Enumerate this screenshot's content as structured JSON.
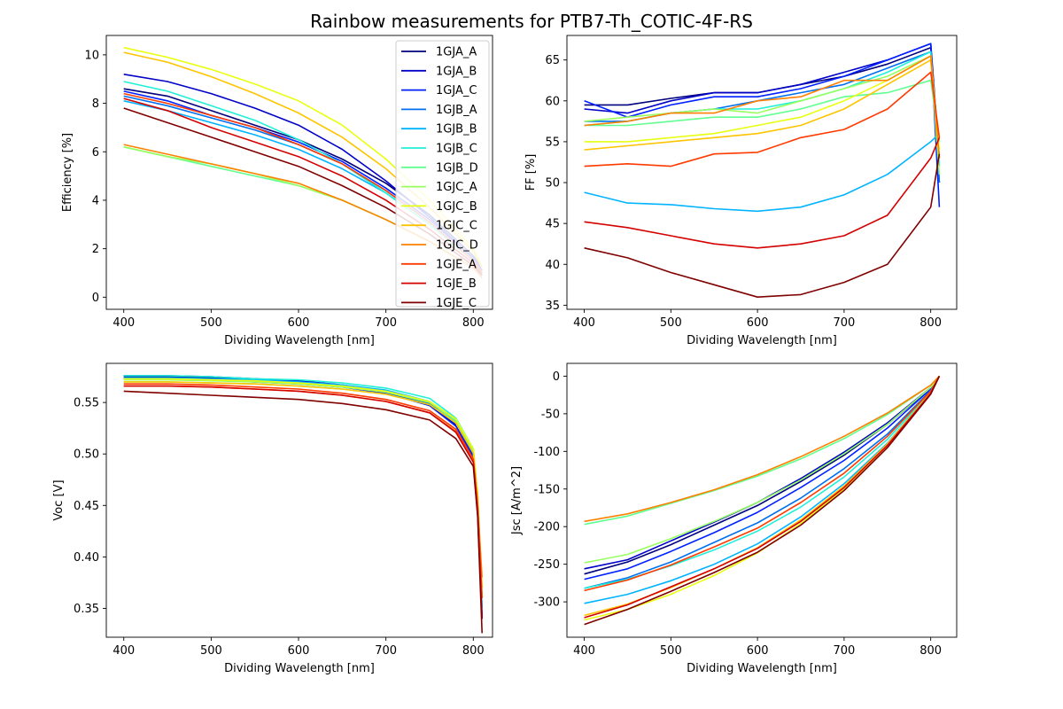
{
  "figure": {
    "title": "Rainbow measurements for PTB7-Th_COTIC-4F-RS"
  },
  "legend": {
    "location": "upper right of top-left panel",
    "entries": [
      "1GJA_A",
      "1GJA_B",
      "1GJA_C",
      "1GJB_A",
      "1GJB_B",
      "1GJB_C",
      "1GJB_D",
      "1GJC_A",
      "1GJC_B",
      "1GJC_C",
      "1GJC_D",
      "1GJE_A",
      "1GJE_B",
      "1GJE_C"
    ]
  },
  "series_colors": {
    "1GJA_A": "#00007f",
    "1GJA_B": "#0000c8",
    "1GJA_C": "#0020ff",
    "1GJB_A": "#0070f0",
    "1GJB_B": "#00b4ff",
    "1GJB_C": "#20f0d8",
    "1GJB_D": "#60ff90",
    "1GJC_A": "#98ff60",
    "1GJC_B": "#e8ff10",
    "1GJC_C": "#ffc400",
    "1GJC_D": "#ff8000",
    "1GJE_A": "#ff3a00",
    "1GJE_B": "#d40000",
    "1GJE_C": "#800000"
  },
  "chart_data": [
    {
      "id": "efficiency",
      "type": "line",
      "xlabel": "Dividing Wavelength [nm]",
      "ylabel": "Efficiency [%]",
      "xlim": [
        380,
        822
      ],
      "ylim": [
        -0.5,
        10.8
      ],
      "xticks": [
        400,
        500,
        600,
        700,
        800
      ],
      "yticks": [
        0,
        2,
        4,
        6,
        8,
        10
      ],
      "x": [
        400,
        450,
        500,
        550,
        600,
        650,
        700,
        750,
        800,
        810
      ],
      "series": [
        {
          "name": "1GJA_A",
          "values": [
            8.6,
            8.3,
            7.7,
            7.1,
            6.5,
            5.7,
            4.7,
            3.4,
            1.7,
            1.2
          ]
        },
        {
          "name": "1GJA_B",
          "values": [
            9.2,
            8.9,
            8.4,
            7.8,
            7.1,
            6.1,
            4.8,
            3.3,
            1.6,
            1.1
          ]
        },
        {
          "name": "1GJA_C",
          "values": [
            8.5,
            8.1,
            7.5,
            7.0,
            6.4,
            5.6,
            4.5,
            3.2,
            1.6,
            1.1
          ]
        },
        {
          "name": "1GJB_A",
          "values": [
            8.3,
            7.9,
            7.4,
            6.9,
            6.3,
            5.5,
            4.4,
            3.1,
            1.5,
            1.0
          ]
        },
        {
          "name": "1GJB_B",
          "values": [
            8.1,
            7.7,
            7.2,
            6.7,
            6.1,
            5.3,
            4.3,
            3.0,
            1.5,
            1.0
          ]
        },
        {
          "name": "1GJB_C",
          "values": [
            8.9,
            8.5,
            7.9,
            7.3,
            6.5,
            5.5,
            4.3,
            3.0,
            1.5,
            1.0
          ]
        },
        {
          "name": "1GJB_D",
          "values": [
            6.2,
            5.8,
            5.4,
            5.0,
            4.6,
            4.0,
            3.2,
            2.3,
            1.2,
            0.8
          ]
        },
        {
          "name": "1GJC_A",
          "values": [
            6.2,
            5.8,
            5.5,
            5.1,
            4.6,
            4.0,
            3.2,
            2.3,
            1.2,
            0.8
          ]
        },
        {
          "name": "1GJC_B",
          "values": [
            10.3,
            9.9,
            9.4,
            8.8,
            8.1,
            7.1,
            5.7,
            4.0,
            2.0,
            1.3
          ]
        },
        {
          "name": "1GJC_C",
          "values": [
            10.1,
            9.7,
            9.1,
            8.4,
            7.6,
            6.6,
            5.3,
            3.7,
            1.9,
            1.2
          ]
        },
        {
          "name": "1GJC_D",
          "values": [
            6.3,
            5.9,
            5.5,
            5.1,
            4.7,
            4.0,
            3.2,
            2.3,
            1.2,
            0.8
          ]
        },
        {
          "name": "1GJE_A",
          "values": [
            8.4,
            8.0,
            7.5,
            7.0,
            6.3,
            5.5,
            4.4,
            3.1,
            1.5,
            1.0
          ]
        },
        {
          "name": "1GJE_B",
          "values": [
            8.2,
            7.7,
            7.0,
            6.4,
            5.8,
            5.0,
            4.0,
            2.8,
            1.4,
            0.9
          ]
        },
        {
          "name": "1GJE_C",
          "values": [
            7.8,
            7.2,
            6.6,
            6.0,
            5.4,
            4.6,
            3.7,
            2.6,
            1.3,
            0.9
          ]
        }
      ]
    },
    {
      "id": "ff",
      "type": "line",
      "xlabel": "Dividing Wavelength [nm]",
      "ylabel": "FF [%]",
      "xlim": [
        380,
        830
      ],
      "ylim": [
        34.5,
        68
      ],
      "xticks": [
        400,
        500,
        600,
        700,
        800
      ],
      "yticks": [
        35,
        40,
        45,
        50,
        55,
        60,
        65
      ],
      "x": [
        400,
        450,
        500,
        550,
        600,
        650,
        700,
        750,
        800,
        810
      ],
      "series": [
        {
          "name": "1GJA_A",
          "values": [
            59.5,
            59.5,
            60.3,
            61.0,
            61.0,
            62.0,
            63.0,
            64.5,
            66.5,
            50.0
          ]
        },
        {
          "name": "1GJA_B",
          "values": [
            59.0,
            58.5,
            60.0,
            61.0,
            61.0,
            62.0,
            63.5,
            65.0,
            67.0,
            53.0
          ]
        },
        {
          "name": "1GJA_C",
          "values": [
            60.0,
            58.0,
            59.5,
            60.5,
            60.5,
            61.5,
            63.0,
            65.0,
            67.0,
            47.0
          ]
        },
        {
          "name": "1GJB_A",
          "values": [
            57.5,
            57.5,
            58.5,
            59.0,
            60.0,
            61.0,
            62.0,
            64.0,
            66.0,
            50.0
          ]
        },
        {
          "name": "1GJB_B",
          "values": [
            48.8,
            47.5,
            47.3,
            46.8,
            46.5,
            47.0,
            48.5,
            51.0,
            55.0,
            56.0
          ]
        },
        {
          "name": "1GJB_C",
          "values": [
            57.0,
            57.5,
            58.5,
            59.0,
            59.0,
            60.0,
            61.5,
            63.5,
            66.0,
            52.0
          ]
        },
        {
          "name": "1GJB_D",
          "values": [
            57.0,
            57.0,
            57.5,
            58.0,
            58.0,
            59.0,
            60.5,
            61.0,
            62.5,
            55.0
          ]
        },
        {
          "name": "1GJC_A",
          "values": [
            57.5,
            58.0,
            58.5,
            59.0,
            58.5,
            60.0,
            61.5,
            63.0,
            65.5,
            51.0
          ]
        },
        {
          "name": "1GJC_B",
          "values": [
            55.0,
            55.0,
            55.5,
            56.0,
            57.0,
            58.0,
            60.0,
            62.5,
            65.5,
            54.0
          ]
        },
        {
          "name": "1GJC_C",
          "values": [
            54.0,
            54.5,
            55.0,
            55.5,
            56.0,
            57.0,
            59.0,
            62.0,
            65.0,
            53.0
          ]
        },
        {
          "name": "1GJC_D",
          "values": [
            57.0,
            57.5,
            58.5,
            58.5,
            60.0,
            60.5,
            62.5,
            62.5,
            65.5,
            53.0
          ]
        },
        {
          "name": "1GJE_A",
          "values": [
            52.0,
            52.3,
            52.0,
            53.5,
            53.7,
            55.5,
            56.5,
            59.0,
            63.5,
            55.5
          ]
        },
        {
          "name": "1GJE_B",
          "values": [
            45.2,
            44.5,
            43.5,
            42.5,
            42.0,
            42.5,
            43.5,
            46.0,
            53.0,
            55.5
          ]
        },
        {
          "name": "1GJE_C",
          "values": [
            42.0,
            40.8,
            39.0,
            37.5,
            36.0,
            36.3,
            37.8,
            40.0,
            47.0,
            53.5
          ]
        }
      ]
    },
    {
      "id": "voc",
      "type": "line",
      "xlabel": "Dividing Wavelength [nm]",
      "ylabel": "Voc [V]",
      "xlim": [
        380,
        822
      ],
      "ylim": [
        0.322,
        0.588
      ],
      "xticks": [
        400,
        500,
        600,
        700,
        800
      ],
      "yticks": [
        0.35,
        0.4,
        0.45,
        0.5,
        0.55
      ],
      "ytick_labels": [
        "0.35",
        "0.40",
        "0.45",
        "0.50",
        "0.55"
      ],
      "x": [
        400,
        450,
        500,
        550,
        600,
        650,
        700,
        750,
        780,
        800,
        805,
        810
      ],
      "series": [
        {
          "name": "1GJA_A",
          "values": [
            0.575,
            0.575,
            0.574,
            0.572,
            0.57,
            0.566,
            0.56,
            0.548,
            0.528,
            0.498,
            0.45,
            0.34
          ]
        },
        {
          "name": "1GJA_B",
          "values": [
            0.576,
            0.576,
            0.575,
            0.573,
            0.571,
            0.567,
            0.561,
            0.549,
            0.529,
            0.498,
            0.45,
            0.34
          ]
        },
        {
          "name": "1GJA_C",
          "values": [
            0.573,
            0.573,
            0.572,
            0.57,
            0.568,
            0.565,
            0.559,
            0.547,
            0.527,
            0.497,
            0.45,
            0.34
          ]
        },
        {
          "name": "1GJB_A",
          "values": [
            0.574,
            0.574,
            0.573,
            0.571,
            0.569,
            0.566,
            0.56,
            0.549,
            0.53,
            0.5,
            0.45,
            0.35
          ]
        },
        {
          "name": "1GJB_B",
          "values": [
            0.574,
            0.574,
            0.573,
            0.572,
            0.57,
            0.567,
            0.562,
            0.551,
            0.532,
            0.502,
            0.45,
            0.35
          ]
        },
        {
          "name": "1GJB_C",
          "values": [
            0.576,
            0.576,
            0.575,
            0.573,
            0.572,
            0.569,
            0.564,
            0.554,
            0.535,
            0.505,
            0.46,
            0.36
          ]
        },
        {
          "name": "1GJB_D",
          "values": [
            0.57,
            0.57,
            0.569,
            0.568,
            0.566,
            0.563,
            0.558,
            0.548,
            0.531,
            0.502,
            0.46,
            0.36
          ]
        },
        {
          "name": "1GJC_A",
          "values": [
            0.572,
            0.572,
            0.571,
            0.57,
            0.568,
            0.565,
            0.56,
            0.55,
            0.533,
            0.504,
            0.46,
            0.36
          ]
        },
        {
          "name": "1GJC_B",
          "values": [
            0.573,
            0.573,
            0.572,
            0.571,
            0.569,
            0.566,
            0.561,
            0.551,
            0.534,
            0.505,
            0.46,
            0.37
          ]
        },
        {
          "name": "1GJC_C",
          "values": [
            0.57,
            0.57,
            0.569,
            0.568,
            0.566,
            0.563,
            0.558,
            0.548,
            0.53,
            0.501,
            0.46,
            0.37
          ]
        },
        {
          "name": "1GJC_D",
          "values": [
            0.566,
            0.566,
            0.565,
            0.563,
            0.561,
            0.557,
            0.551,
            0.54,
            0.522,
            0.494,
            0.45,
            0.38
          ]
        },
        {
          "name": "1GJE_A",
          "values": [
            0.568,
            0.568,
            0.567,
            0.565,
            0.563,
            0.559,
            0.553,
            0.542,
            0.524,
            0.495,
            0.45,
            0.36
          ]
        },
        {
          "name": "1GJE_B",
          "values": [
            0.566,
            0.566,
            0.565,
            0.563,
            0.561,
            0.557,
            0.551,
            0.54,
            0.521,
            0.492,
            0.44,
            0.34
          ]
        },
        {
          "name": "1GJE_C",
          "values": [
            0.561,
            0.559,
            0.557,
            0.555,
            0.553,
            0.549,
            0.543,
            0.533,
            0.515,
            0.488,
            0.44,
            0.326
          ]
        }
      ]
    },
    {
      "id": "jsc",
      "type": "line",
      "xlabel": "Dividing Wavelength [nm]",
      "ylabel": "Jsc [A/m^2]",
      "xlim": [
        380,
        830
      ],
      "ylim": [
        -347,
        17
      ],
      "xticks": [
        400,
        500,
        600,
        700,
        800
      ],
      "yticks": [
        0,
        -50,
        -100,
        -150,
        -200,
        -250,
        -300
      ],
      "x": [
        400,
        450,
        500,
        550,
        600,
        650,
        700,
        750,
        800,
        810
      ],
      "series": [
        {
          "name": "1GJA_A",
          "values": [
            -263,
            -247,
            -224,
            -198,
            -172,
            -140,
            -105,
            -64,
            -16,
            0
          ]
        },
        {
          "name": "1GJA_B",
          "values": [
            -256,
            -244,
            -219,
            -194,
            -168,
            -136,
            -101,
            -62,
            -15,
            0
          ]
        },
        {
          "name": "1GJA_C",
          "values": [
            -270,
            -256,
            -233,
            -208,
            -181,
            -148,
            -112,
            -69,
            -17,
            0
          ]
        },
        {
          "name": "1GJB_A",
          "values": [
            -282,
            -268,
            -247,
            -221,
            -195,
            -162,
            -123,
            -77,
            -19,
            0
          ]
        },
        {
          "name": "1GJB_B",
          "values": [
            -302,
            -290,
            -272,
            -250,
            -223,
            -187,
            -143,
            -89,
            -22,
            0
          ]
        },
        {
          "name": "1GJB_C",
          "values": [
            -282,
            -270,
            -252,
            -231,
            -206,
            -174,
            -134,
            -84,
            -21,
            0
          ]
        },
        {
          "name": "1GJB_D",
          "values": [
            -197,
            -186,
            -169,
            -152,
            -133,
            -110,
            -83,
            -51,
            -12,
            0
          ]
        },
        {
          "name": "1GJC_A",
          "values": [
            -248,
            -237,
            -216,
            -193,
            -168,
            -138,
            -103,
            -64,
            -15,
            0
          ]
        },
        {
          "name": "1GJC_B",
          "values": [
            -324,
            -310,
            -290,
            -265,
            -235,
            -196,
            -150,
            -92,
            -23,
            0
          ]
        },
        {
          "name": "1GJC_C",
          "values": [
            -318,
            -303,
            -281,
            -256,
            -228,
            -191,
            -146,
            -90,
            -22,
            0
          ]
        },
        {
          "name": "1GJC_D",
          "values": [
            -193,
            -183,
            -168,
            -151,
            -131,
            -107,
            -80,
            -49,
            -12,
            0
          ]
        },
        {
          "name": "1GJE_A",
          "values": [
            -285,
            -271,
            -251,
            -227,
            -202,
            -168,
            -129,
            -80,
            -20,
            0
          ]
        },
        {
          "name": "1GJE_B",
          "values": [
            -321,
            -304,
            -280,
            -256,
            -229,
            -193,
            -148,
            -92,
            -23,
            0
          ]
        },
        {
          "name": "1GJE_C",
          "values": [
            -330,
            -310,
            -286,
            -261,
            -234,
            -198,
            -152,
            -95,
            -24,
            0
          ]
        }
      ]
    }
  ]
}
